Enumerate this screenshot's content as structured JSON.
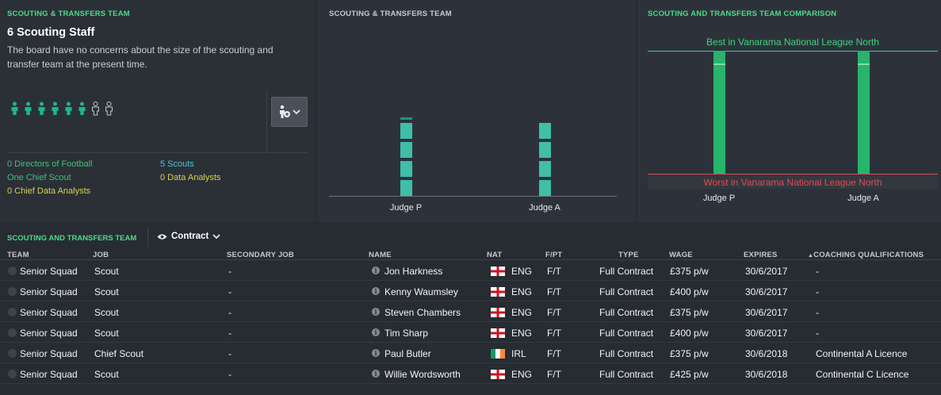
{
  "staff_panel": {
    "title": "SCOUTING & TRANSFERS TEAM",
    "heading": "6 Scouting Staff",
    "description": "The board have no concerns about the size of the scouting and transfer team at the present time.",
    "people_filled": 6,
    "people_empty": 2,
    "counts": {
      "directors": "0 Directors of Football",
      "chief_scout": "One Chief Scout",
      "chief_data_analysts": "0 Chief Data Analysts",
      "scouts": "5 Scouts",
      "data_analysts": "0 Data Analysts"
    }
  },
  "chart_panel": {
    "title": "SCOUTING & TRANSFERS TEAM",
    "chart_data": {
      "type": "bar",
      "categories": [
        "Judge P",
        "Judge A"
      ],
      "values": [
        6.1,
        5.8
      ],
      "ylim": [
        0,
        10
      ],
      "grid": false
    }
  },
  "comparison_panel": {
    "title": "SCOUTING AND TRANSFERS TEAM COMPARISON",
    "best_label": "Best in Vanarama National League North",
    "worst_label": "Worst in Vanarama National League North",
    "chart_data": {
      "type": "bar",
      "categories": [
        "Judge P",
        "Judge A"
      ],
      "values": [
        0.9,
        0.9
      ],
      "ylim": [
        0,
        1
      ]
    }
  },
  "table": {
    "title": "SCOUTING AND TRANSFERS TEAM",
    "view_label": "Contract",
    "columns": [
      "TEAM",
      "JOB",
      "SECONDARY JOB",
      "NAME",
      "NAT",
      "F/PT",
      "TYPE",
      "WAGE",
      "EXPIRES",
      "COACHING QUALIFICATIONS"
    ],
    "rows": [
      {
        "team": "Senior Squad",
        "job": "Scout",
        "secondary": "-",
        "name": "Jon Harkness",
        "nat": "ENG",
        "fpt": "F/T",
        "type": "Full Contract",
        "wage": "£375 p/w",
        "expires": "30/6/2017",
        "quals": "-"
      },
      {
        "team": "Senior Squad",
        "job": "Scout",
        "secondary": "-",
        "name": "Kenny Waumsley",
        "nat": "ENG",
        "fpt": "F/T",
        "type": "Full Contract",
        "wage": "£400 p/w",
        "expires": "30/6/2017",
        "quals": "-"
      },
      {
        "team": "Senior Squad",
        "job": "Scout",
        "secondary": "-",
        "name": "Steven Chambers",
        "nat": "ENG",
        "fpt": "F/T",
        "type": "Full Contract",
        "wage": "£375 p/w",
        "expires": "30/6/2017",
        "quals": "-"
      },
      {
        "team": "Senior Squad",
        "job": "Scout",
        "secondary": "-",
        "name": "Tim Sharp",
        "nat": "ENG",
        "fpt": "F/T",
        "type": "Full Contract",
        "wage": "£400 p/w",
        "expires": "30/6/2017",
        "quals": "-"
      },
      {
        "team": "Senior Squad",
        "job": "Chief Scout",
        "secondary": "-",
        "name": "Paul Butler",
        "nat": "IRL",
        "fpt": "F/T",
        "type": "Full Contract",
        "wage": "£375 p/w",
        "expires": "30/6/2018",
        "quals": "Continental A Licence"
      },
      {
        "team": "Senior Squad",
        "job": "Scout",
        "secondary": "-",
        "name": "Willie Wordsworth",
        "nat": "ENG",
        "fpt": "F/T",
        "type": "Full Contract",
        "wage": "£425 p/w",
        "expires": "30/6/2018",
        "quals": "Continental C Licence"
      }
    ]
  },
  "colors": {
    "accent_green": "#4ddb8a",
    "bar_teal": "#3fbfa8",
    "bar_top": "#0e9c7f",
    "best": "#3dd57f",
    "worst": "#e04a55"
  }
}
